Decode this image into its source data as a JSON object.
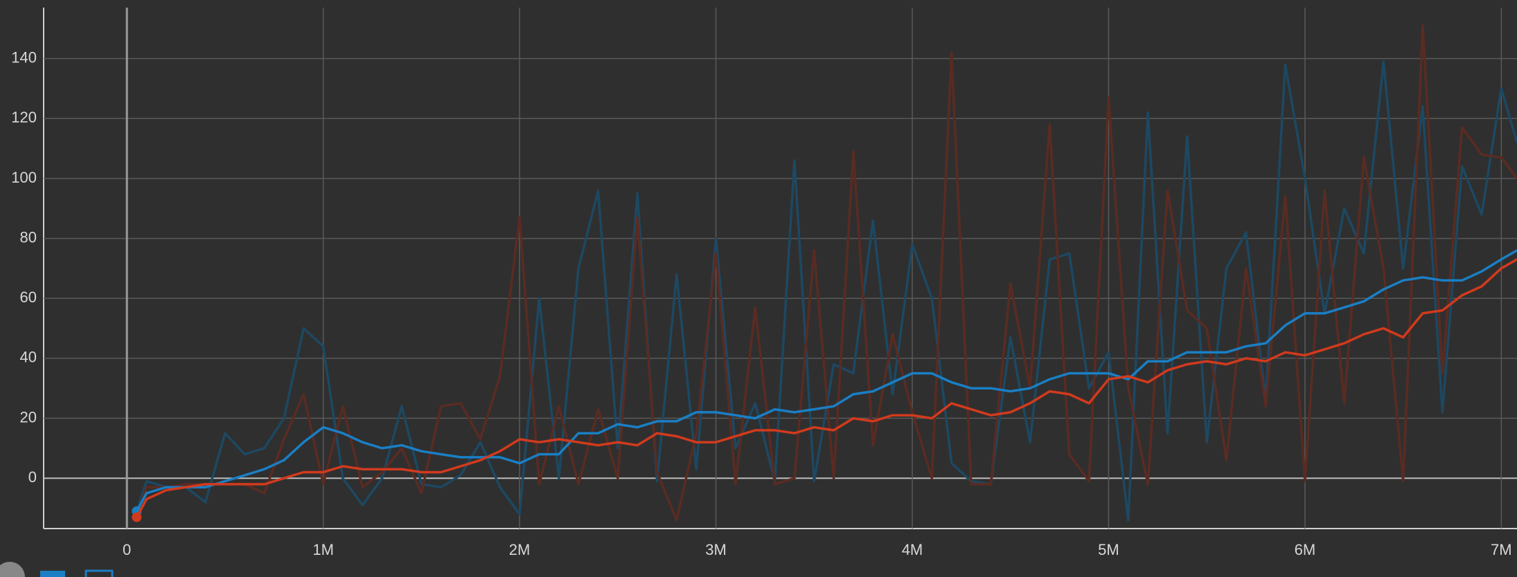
{
  "chart_data": {
    "type": "line",
    "x": [
      50000,
      100000,
      200000,
      300000,
      400000,
      500000,
      600000,
      700000,
      800000,
      900000,
      1000000,
      1100000,
      1200000,
      1300000,
      1400000,
      1500000,
      1600000,
      1700000,
      1800000,
      1900000,
      2000000,
      2100000,
      2200000,
      2300000,
      2400000,
      2500000,
      2600000,
      2700000,
      2800000,
      2900000,
      3000000,
      3100000,
      3200000,
      3300000,
      3400000,
      3500000,
      3600000,
      3700000,
      3800000,
      3900000,
      4000000,
      4100000,
      4200000,
      4300000,
      4400000,
      4500000,
      4600000,
      4700000,
      4800000,
      4900000,
      5000000,
      5100000,
      5200000,
      5300000,
      5400000,
      5500000,
      5600000,
      5700000,
      5800000,
      5900000,
      6000000,
      6100000,
      6200000,
      6300000,
      6400000,
      6500000,
      6600000,
      6700000,
      6800000,
      6900000,
      7000000,
      7080000
    ],
    "series": [
      {
        "color": "#1d4862",
        "start_marker": false,
        "values": [
          -11,
          -1,
          -3,
          -3,
          -8,
          15,
          8,
          10,
          20,
          50,
          44,
          0,
          -9,
          0,
          24,
          -2,
          -3,
          1,
          12,
          -3,
          -12,
          60,
          0,
          70,
          96,
          10,
          95,
          -1,
          68,
          3,
          80,
          10,
          25,
          -1,
          106,
          -1,
          38,
          35,
          86,
          28,
          78,
          60,
          5,
          -1,
          -2,
          47,
          12,
          73,
          75,
          30,
          42,
          -14,
          122,
          15,
          114,
          12,
          70,
          82,
          26,
          138,
          100,
          55,
          90,
          75,
          139,
          70,
          124,
          22,
          104,
          88,
          130,
          112
        ]
      },
      {
        "color": "#5a2b22",
        "start_marker": false,
        "values": [
          -13,
          -3,
          -3,
          -2,
          -2,
          -2,
          -2,
          -5,
          13,
          28,
          -2,
          24,
          -3,
          2,
          10,
          -5,
          24,
          25,
          13,
          34,
          87,
          -2,
          24,
          -2,
          23,
          0,
          87,
          2,
          -14,
          15,
          75,
          -2,
          57,
          -2,
          0,
          76,
          0,
          109,
          11,
          48,
          22,
          0,
          142,
          -2,
          -2,
          65,
          30,
          118,
          8,
          -1,
          127,
          30,
          -2,
          96,
          56,
          50,
          6,
          70,
          24,
          94,
          -1,
          96,
          25,
          107,
          70,
          -1,
          151,
          35,
          117,
          108,
          107,
          100
        ]
      },
      {
        "color": "#1a7fc4",
        "start_marker": true,
        "values": [
          -11,
          -5,
          -3,
          -3,
          -3,
          -1,
          1,
          3,
          6,
          12,
          17,
          15,
          12,
          10,
          11,
          9,
          8,
          7,
          7,
          7,
          5,
          8,
          8,
          15,
          15,
          18,
          17,
          19,
          19,
          22,
          22,
          21,
          20,
          23,
          22,
          23,
          24,
          28,
          29,
          32,
          35,
          35,
          32,
          30,
          30,
          29,
          30,
          33,
          35,
          35,
          35,
          33,
          39,
          39,
          42,
          42,
          42,
          44,
          45,
          51,
          55,
          55,
          57,
          59,
          63,
          66,
          67,
          66,
          66,
          69,
          73,
          76
        ]
      },
      {
        "color": "#d23a1d",
        "start_marker": true,
        "values": [
          -13,
          -7,
          -4,
          -3,
          -2,
          -2,
          -2,
          -2,
          0,
          2,
          2,
          4,
          3,
          3,
          3,
          2,
          2,
          4,
          6,
          9,
          13,
          12,
          13,
          12,
          11,
          12,
          11,
          15,
          14,
          12,
          12,
          14,
          16,
          16,
          15,
          17,
          16,
          20,
          19,
          21,
          21,
          20,
          25,
          23,
          21,
          22,
          25,
          29,
          28,
          25,
          33,
          34,
          32,
          36,
          38,
          39,
          38,
          40,
          39,
          42,
          41,
          43,
          45,
          48,
          50,
          47,
          55,
          56,
          61,
          64,
          70,
          73
        ]
      }
    ],
    "xlim": [
      -424000,
      7080000
    ],
    "ylim": [
      -16.8,
      157
    ],
    "xticks": [
      0,
      {
        "value": 1000000,
        "label": "1M"
      },
      {
        "value": 2000000,
        "label": "2M"
      },
      {
        "value": 3000000,
        "label": "3M"
      },
      {
        "value": 4000000,
        "label": "4M"
      },
      {
        "value": 5000000,
        "label": "5M"
      },
      {
        "value": 6000000,
        "label": "6M"
      },
      {
        "value": 7000000,
        "label": "7M"
      }
    ],
    "yticks": [
      0,
      20,
      40,
      60,
      80,
      100,
      120,
      140
    ],
    "grid": true
  }
}
